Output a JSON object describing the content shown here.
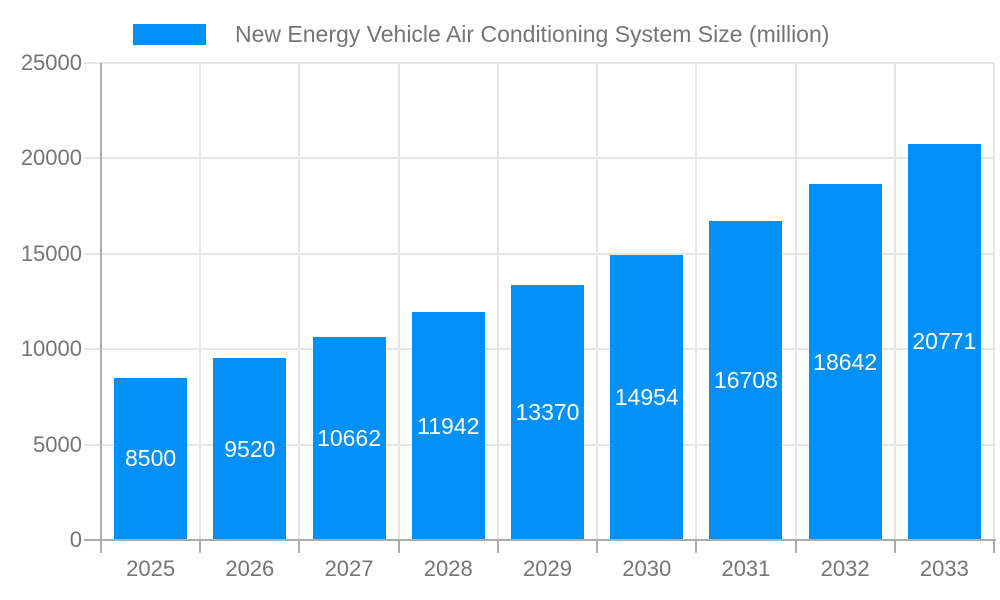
{
  "legend": {
    "label": "New Energy Vehicle Air Conditioning System Size (million)"
  },
  "chart_data": {
    "type": "bar",
    "title": "New Energy Vehicle Air Conditioning System Size (million)",
    "categories": [
      "2025",
      "2026",
      "2027",
      "2028",
      "2029",
      "2030",
      "2031",
      "2032",
      "2033"
    ],
    "values": [
      8500,
      9520,
      10662,
      11942,
      13370,
      14954,
      16708,
      18642,
      20771
    ],
    "xlabel": "",
    "ylabel": "",
    "ylim": [
      0,
      25000
    ],
    "yticks": [
      0,
      5000,
      10000,
      15000,
      20000,
      25000
    ],
    "grid": "on",
    "legend_position": "top",
    "value_labels": "inside-center",
    "colors": {
      "bar": "#0190F5",
      "value_label": "#FFFFFF",
      "axis_text": "#757575",
      "grid_line": "#E6E6E6",
      "axis_line": "#ABABAB",
      "background": "#FFFFFF"
    }
  }
}
